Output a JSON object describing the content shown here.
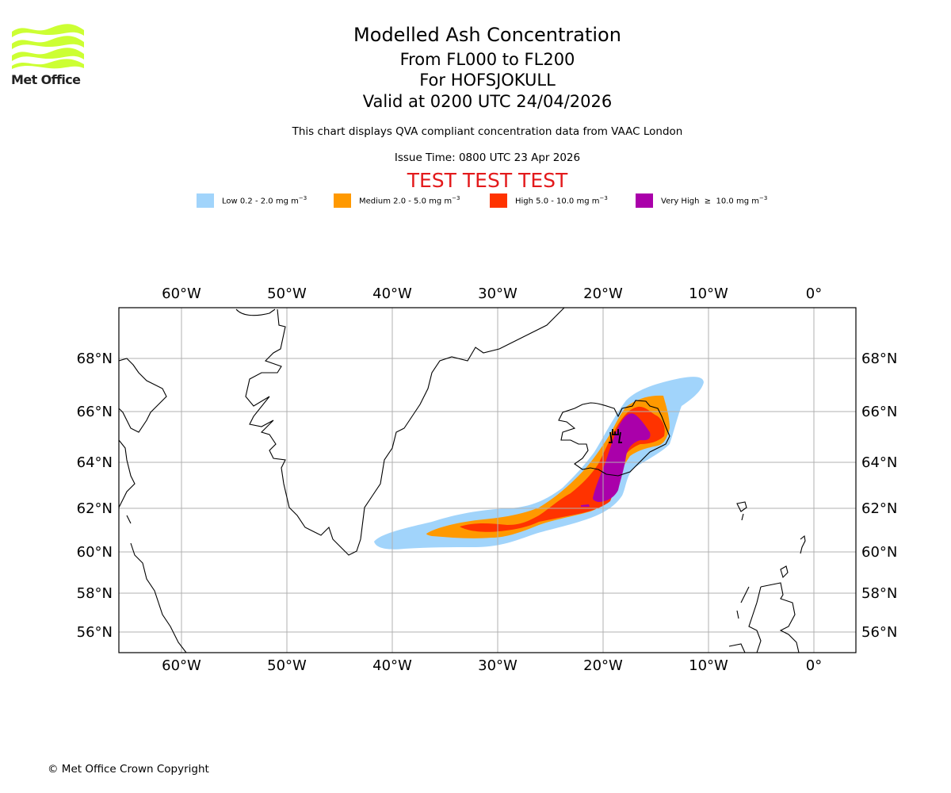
{
  "logo": {
    "text": "Met Office",
    "color": "#ccff33"
  },
  "header": {
    "title": "Modelled Ash Concentration",
    "levels": "From FL000 to FL200",
    "volcano": "For HOFSJOKULL",
    "valid": "Valid at 0200 UTC 24/04/2026",
    "subtitle": "This chart displays QVA compliant concentration data from VAAC London",
    "issue_time": "Issue Time: 0800 UTC 23 Apr 2026",
    "test_banner": "TEST TEST TEST"
  },
  "legend": [
    {
      "label": "Low 0.2 - 2.0 mg m",
      "exp": "−3",
      "color": "#a1d4fb"
    },
    {
      "label": "Medium 2.0 - 5.0 mg m",
      "exp": "−3",
      "color": "#ff9900"
    },
    {
      "label": "High 5.0 - 10.0 mg m",
      "exp": "−3",
      "color": "#ff3300"
    },
    {
      "label": "Very High  ≥  10.0 mg m",
      "exp": "−3",
      "color": "#aa00aa"
    }
  ],
  "chart_data": {
    "type": "map",
    "title": "Modelled Ash Concentration",
    "lon_range": [
      -66,
      4
    ],
    "lat_range": [
      55,
      70
    ],
    "lon_ticks": [
      "60°W",
      "50°W",
      "40°W",
      "30°W",
      "20°W",
      "10°W",
      "0°"
    ],
    "lon_values": [
      -60,
      -50,
      -40,
      -30,
      -20,
      -10,
      0
    ],
    "lat_ticks": [
      "68°N",
      "66°N",
      "64°N",
      "62°N",
      "60°N",
      "58°N",
      "56°N"
    ],
    "lat_values": [
      68,
      66,
      64,
      62,
      60,
      58,
      56
    ],
    "grid": true,
    "volcano": {
      "name": "HOFSJOKULL",
      "lon": -18.8,
      "lat": 64.8,
      "icon": "volcano-icon"
    },
    "ash_levels": [
      "Low",
      "Medium",
      "High",
      "Very High"
    ]
  },
  "footer": {
    "copyright": "© Met Office Crown Copyright"
  }
}
